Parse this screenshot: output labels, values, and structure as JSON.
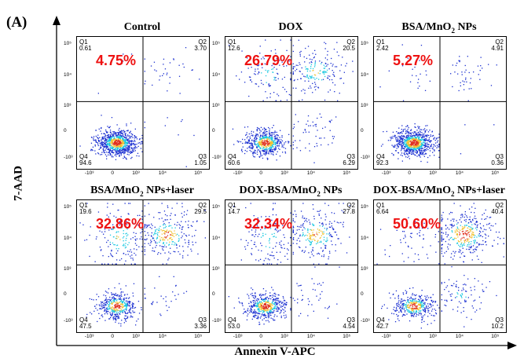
{
  "figure": {
    "panel_letter": "(A)",
    "x_axis_title": "Annexin V-APC",
    "y_axis_title": "7-AAD"
  },
  "tick_labels": {
    "x": [
      "-10³",
      "0",
      "10³",
      "10⁴",
      "10⁵"
    ],
    "y": [
      "10⁵",
      "10⁴",
      "10³",
      "0",
      "-10³"
    ]
  },
  "colors": {
    "percent_text": "#ee1111",
    "density_low": "#1a2fd0",
    "density_mid": "#19c8e0",
    "density_high": "#f1c232",
    "density_peak": "#e0301e"
  },
  "chart_data": {
    "type": "scatter",
    "subtype": "flow cytometry density plot, 2x3 grid of quadrant plots",
    "xlabel": "Annexin V-APC",
    "ylabel": "7-AAD",
    "x_scale": "biexponential",
    "y_scale": "biexponential",
    "quadrant_names": [
      "Q1",
      "Q2",
      "Q3",
      "Q4"
    ],
    "panels": [
      {
        "title": "Control",
        "title_sub": "",
        "title_suffix": "",
        "highlight": "4.75%",
        "quadrants": {
          "Q1": "0.61",
          "Q2": "3.70",
          "Q3": "1.05",
          "Q4": "94.6"
        }
      },
      {
        "title": "DOX",
        "title_sub": "",
        "title_suffix": "",
        "highlight": "26.79%",
        "quadrants": {
          "Q1": "12.6",
          "Q2": "20.5",
          "Q3": "6.29",
          "Q4": "60.6"
        }
      },
      {
        "title": "BSA/MnO",
        "title_sub": "2",
        "title_suffix": " NPs",
        "highlight": "5.27%",
        "quadrants": {
          "Q1": "2.42",
          "Q2": "4.91",
          "Q3": "0.36",
          "Q4": "92.3"
        }
      },
      {
        "title": "BSA/MnO",
        "title_sub": "2",
        "title_suffix": " NPs+laser",
        "highlight": "32.86%",
        "quadrants": {
          "Q1": "19.6",
          "Q2": "29.5",
          "Q3": "3.36",
          "Q4": "47.5"
        }
      },
      {
        "title": "DOX-BSA/MnO",
        "title_sub": "2",
        "title_suffix": " NPs",
        "highlight": "32.34%",
        "quadrants": {
          "Q1": "14.7",
          "Q2": "27.8",
          "Q3": "4.54",
          "Q4": "53.0"
        }
      },
      {
        "title": "DOX-BSA/MnO",
        "title_sub": "2",
        "title_suffix": " NPs+laser",
        "highlight": "50.60%",
        "quadrants": {
          "Q1": "6.64",
          "Q2": "40.4",
          "Q3": "10.2",
          "Q4": "42.7"
        }
      }
    ]
  }
}
